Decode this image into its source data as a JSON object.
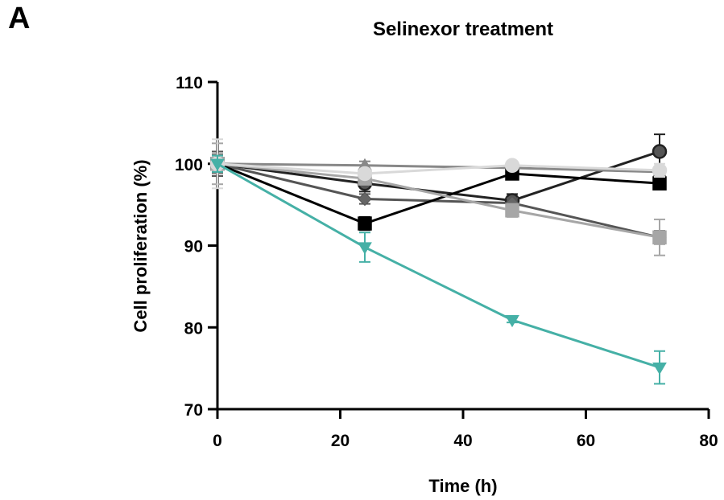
{
  "panel_label": "A",
  "chart_data": {
    "type": "line",
    "title": "Selinexor treatment",
    "xlabel": "Time (h)",
    "ylabel": "Cell proliferation (%)",
    "xlim": [
      0,
      80
    ],
    "ylim": [
      70,
      110
    ],
    "xticks": [
      0,
      20,
      40,
      60,
      80
    ],
    "yticks": [
      70,
      80,
      90,
      100,
      110
    ],
    "grid": false,
    "x": [
      0,
      24,
      48,
      72
    ],
    "series": [
      {
        "marker": "circle",
        "color": "#222222",
        "fill": "#555555",
        "values": [
          100,
          97.6,
          95.5,
          101.5
        ],
        "errors": [
          1.5,
          1.0,
          0.8,
          2.1
        ]
      },
      {
        "marker": "diamond",
        "color": "#555555",
        "fill": "#666666",
        "values": [
          100,
          95.7,
          95.2,
          91.0
        ],
        "errors": [
          1.5,
          0.6,
          0.6,
          0.8
        ]
      },
      {
        "marker": "triangle-up",
        "color": "#888888",
        "fill": "#888888",
        "values": [
          100,
          99.8,
          99.5,
          99.0
        ],
        "errors": [
          1.2,
          0.5,
          0.5,
          0.6
        ]
      },
      {
        "marker": "square",
        "color": "#000000",
        "fill": "#000000",
        "values": [
          100,
          92.7,
          98.8,
          97.6
        ],
        "errors": [
          1.0,
          0.8,
          0.5,
          0.6
        ]
      },
      {
        "marker": "square",
        "color": "#a6a6a6",
        "fill": "#a6a6a6",
        "values": [
          100,
          98.2,
          94.3,
          91.0
        ],
        "errors": [
          2.5,
          0.6,
          0.8,
          2.2
        ]
      },
      {
        "marker": "circle",
        "color": "#d9d9d9",
        "fill": "#d9d9d9",
        "values": [
          100,
          98.8,
          99.8,
          99.2
        ],
        "errors": [
          3.0,
          0.5,
          0.5,
          0.8
        ]
      },
      {
        "marker": "triangle-down",
        "color": "#45b0a6",
        "fill": "#45b0a6",
        "values": [
          100,
          89.8,
          80.9,
          75.1
        ],
        "errors": [
          1.0,
          1.8,
          0.3,
          2.0
        ]
      }
    ]
  }
}
